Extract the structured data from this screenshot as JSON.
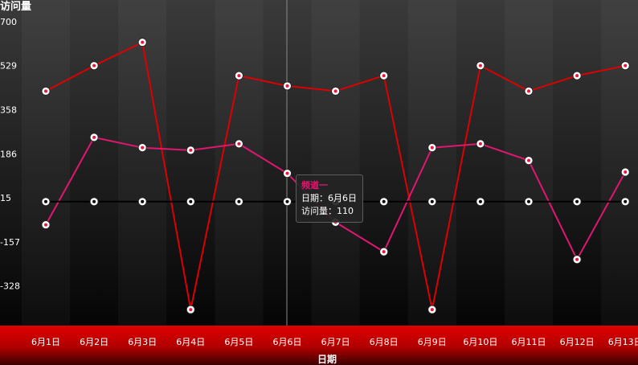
{
  "chart_data": {
    "type": "line",
    "ylabel": "访问量",
    "xlabel": "日期",
    "categories": [
      "6月1日",
      "6月2日",
      "6月3日",
      "6月4日",
      "6月5日",
      "6月6日",
      "6月7日",
      "6月8日",
      "6月9日",
      "6月10日",
      "6月11日",
      "6月12日",
      "6月13日"
    ],
    "y_ticks": [
      "700",
      "529",
      "358",
      "186",
      "15",
      "-157",
      "-328"
    ],
    "ylim": [
      -499,
      700
    ],
    "series": [
      {
        "color": "#dd0000",
        "values": [
          430,
          529,
          620,
          -420,
          490,
          450,
          430,
          490,
          -420,
          529,
          430,
          490,
          529
        ]
      },
      {
        "name": "频道一",
        "color": "#e0166f",
        "values": [
          -90,
          250,
          210,
          200,
          225,
          110,
          -80,
          -195,
          210,
          225,
          160,
          -225,
          115
        ]
      },
      {
        "color": "#000000",
        "values": [
          0,
          0,
          0,
          0,
          0,
          0,
          0,
          0,
          0,
          0,
          0,
          0,
          0
        ]
      }
    ],
    "grid": false,
    "legend": "none"
  },
  "tooltip": {
    "title": "频道一",
    "date_line": "日期：6月6日",
    "value_line": "访问量：110"
  },
  "colors": {
    "bottom_band": "#e00000",
    "marker_fill": "#ffffff"
  }
}
